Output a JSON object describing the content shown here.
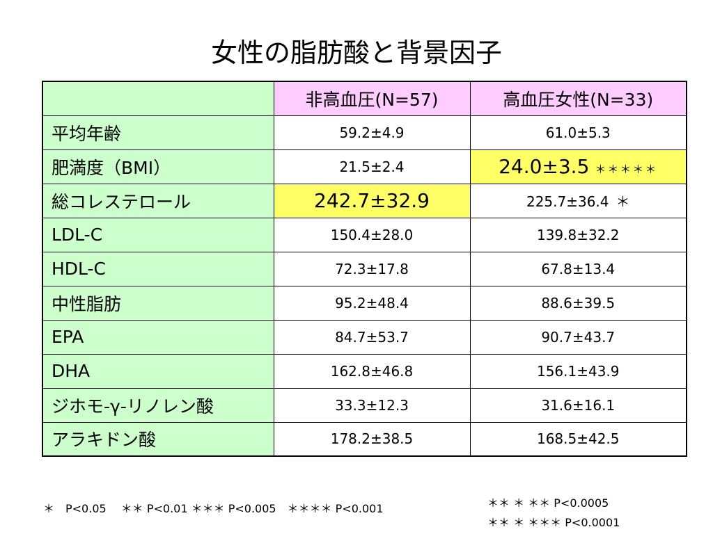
{
  "title": "女性の脂肪酸と背景因子",
  "table": {
    "headers": [
      "",
      "非高血圧(N=57)",
      "高血圧女性(N=33)"
    ],
    "rows": [
      {
        "label": "平均年齢",
        "col1": "59.2±4.9",
        "col2": "61.0±5.3",
        "col1_mark": "",
        "col2_mark": ""
      },
      {
        "label": "肥満度（BMI）",
        "col1": "21.5±2.4",
        "col2": "24.0±3.5",
        "col1_mark": "",
        "col2_mark": "＊＊＊＊＊"
      },
      {
        "label": "総コレステロール",
        "col1": "242.7±32.9",
        "col2": "225.7±36.4",
        "col1_mark": "",
        "col2_mark": "＊"
      },
      {
        "label": "LDL-C",
        "col1": "150.4±28.0",
        "col2": "139.8±32.2",
        "col1_mark": "",
        "col2_mark": ""
      },
      {
        "label": "HDL-C",
        "col1": "72.3±17.8",
        "col2": "67.8±13.4",
        "col1_mark": "",
        "col2_mark": ""
      },
      {
        "label": "中性脂肪",
        "col1": "95.2±48.4",
        "col2": "88.6±39.5",
        "col1_mark": "",
        "col2_mark": ""
      },
      {
        "label": "EPA",
        "col1": "84.7±53.7",
        "col2": "90.7±43.7",
        "col1_mark": "",
        "col2_mark": ""
      },
      {
        "label": "DHA",
        "col1": "162.8±46.8",
        "col2": "156.1±43.9",
        "col1_mark": "",
        "col2_mark": ""
      },
      {
        "label": "ジホモ-γ-リノレン酸",
        "col1": "33.3±12.3",
        "col2": "31.6±16.1",
        "col1_mark": "",
        "col2_mark": ""
      },
      {
        "label": "アラキドン酸",
        "col1": "178.2±38.5",
        "col2": "168.5±42.5",
        "col1_mark": "",
        "col2_mark": ""
      }
    ],
    "highlight_color": "#ffff66",
    "label_color": "#ccffcc",
    "header_color": "#ffccff"
  },
  "footnotes": {
    "left": "＊　P<0.05　 ＊＊ P<0.01 ＊＊＊ P<0.005　＊＊＊＊ P<0.001",
    "right1": "＊＊ ＊ ＊＊ P<0.0005",
    "right2": "＊＊ ＊ ＊＊＊ P<0.0001"
  }
}
